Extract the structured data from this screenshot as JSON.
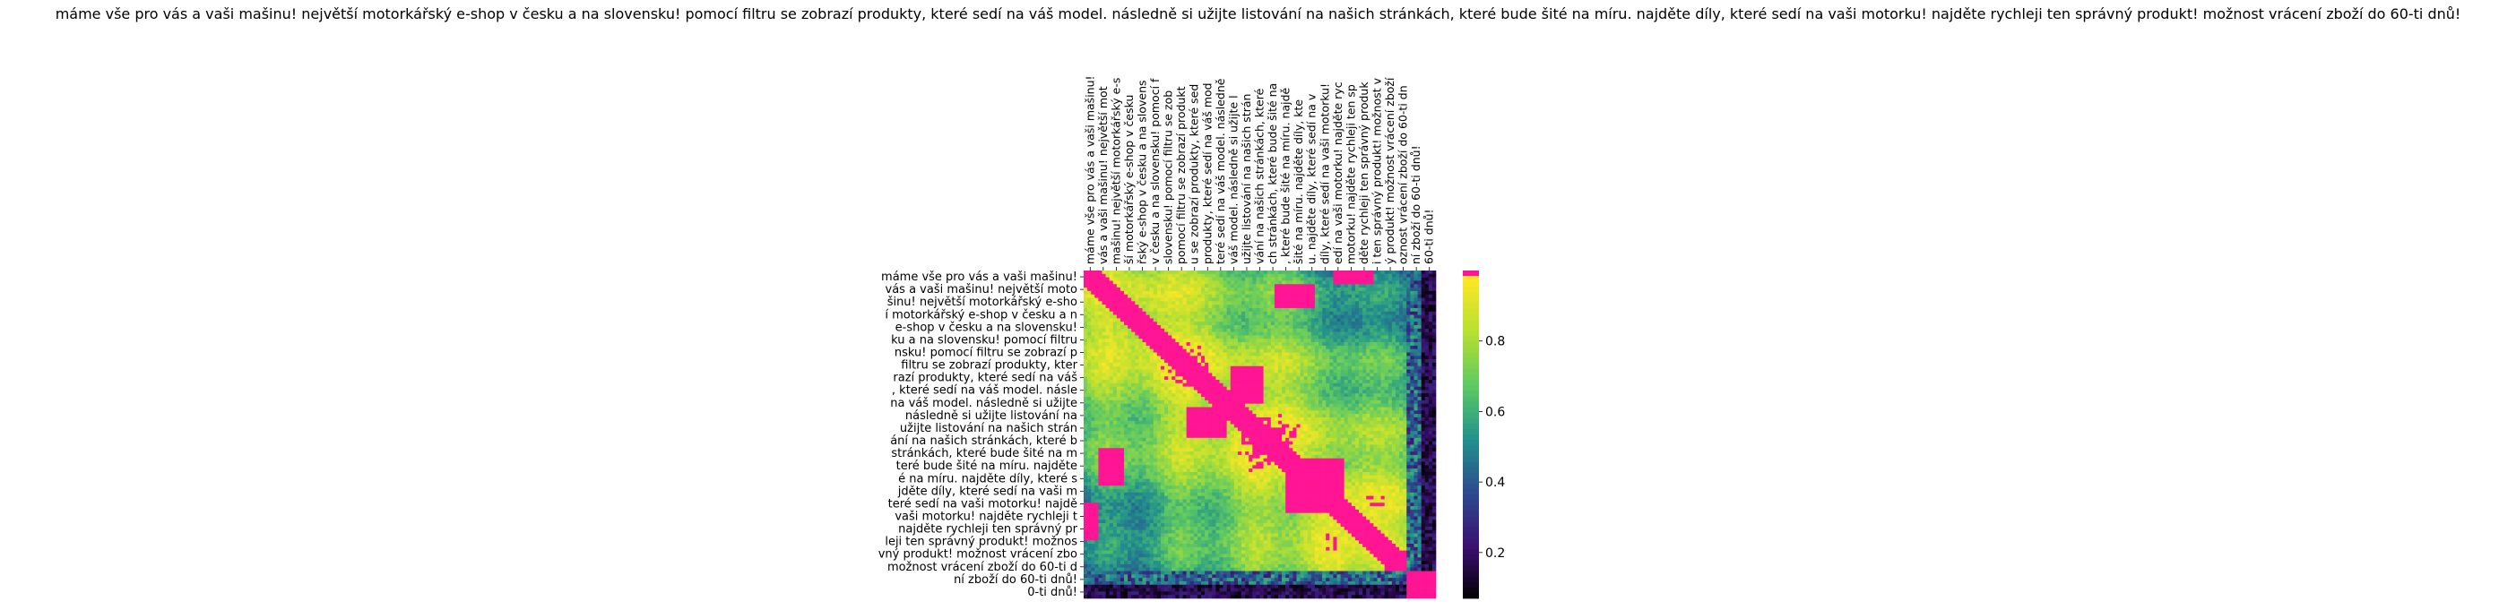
{
  "chart_data": {
    "type": "heatmap",
    "title": "máme vše pro vás a vaši mašinu! největší motorkářský e-shop v česku a na slovensku! pomocí filtru se zobrazí produkty, které sedí na váš model. následně si užijte listování na našich stránkách, které bude šité na míru. najděte díly, které sedí na vaši motorku! najděte rychleji ten správný produkt! možnost vrácení zboží do 60-ti dnů!",
    "xlabel": "",
    "ylabel": "",
    "y_tick_labels": [
      "máme vše pro vás a vaši mašinu!",
      "vás a vaši mašinu! největší moto",
      "šinu! největší motorkářský e-sho",
      "í motorkářský e-shop v česku a n",
      "e-shop v česku a na slovensku!",
      "ku a na slovensku! pomocí filtru",
      "nsku! pomocí filtru se zobrazí p",
      "filtru se zobrazí produkty, kter",
      "razí produkty, které sedí na váš",
      ", které sedí na váš model. násle",
      "na váš model. následně si užijte",
      "následně si užijte listování na",
      "užijte listování na našich strán",
      "ání na našich stránkách, které b",
      "stránkách, které bude šité na m",
      "teré bude šité na míru. najděte",
      "é na míru. najděte díly, které s",
      "jděte díly, které sedí na vaši m",
      "teré sedí na vaši motorku! najdě",
      "vaši motorku! najděte rychleji t",
      "najděte rychleji ten správný pr",
      "leji ten správný produkt! možnos",
      "vný produkt! možnost vrácení zbo",
      "možnost vrácení zboží do 60-ti d",
      "ní zboží do 60-ti dnů!",
      "0-ti dnů!"
    ],
    "x_tick_labels": [
      "máme vše pro vás a vaši mašinu!",
      "vás a vaši mašinu! největší mot",
      "mašinu! největší motorkářský e-s",
      "ší motorkářský e-shop v česku",
      "řský e-shop v česku a na slovens",
      "v česku a na slovensku! pomocí f",
      "slovensku! pomocí filtru se zob",
      "pomocí filtru se zobrazí produkt",
      "u se zobrazí produkty, které sed",
      "produkty, které sedí na váš mod",
      "teré sedí na váš model. následně",
      "váš model. následně si užijte l",
      "užijte listování na našich strán",
      "vání na našich stránkách, které",
      "ch stránkách, které bude šité na",
      ", které bude šité na míru. najdě",
      "šité na míru. najděte díly, kte",
      "u. najděte díly, které sedí na v",
      "díly, které sedí na vaši motorku!",
      "edí na vaši motorku! najděte ryc",
      "motorku! najděte rychleji ten sp",
      "děte rychleji ten správný produk",
      "i ten správný produkt! možnost v",
      "ý produkt! možnost vrácení zboží",
      "oznost vrácení zboží do 60-ti dn",
      "ní zboží do 60-ti dnů!",
      "60-ti dnů!"
    ],
    "matrix_size": 96,
    "value_range": [
      0.07,
      1.0
    ],
    "colorbar_ticks": [
      "0.2",
      "0.4",
      "0.6",
      "0.8"
    ],
    "colorbar_tick_values": [
      0.2,
      0.4,
      0.6,
      0.8
    ],
    "colorscale": [
      "#000000",
      "#3b0f70",
      "#2c4a8e",
      "#21918c",
      "#5ec962",
      "#b8e031",
      "#fde725"
    ],
    "highlight_color": "#ff1493",
    "highlight_threshold": 0.985,
    "legend": "right"
  }
}
